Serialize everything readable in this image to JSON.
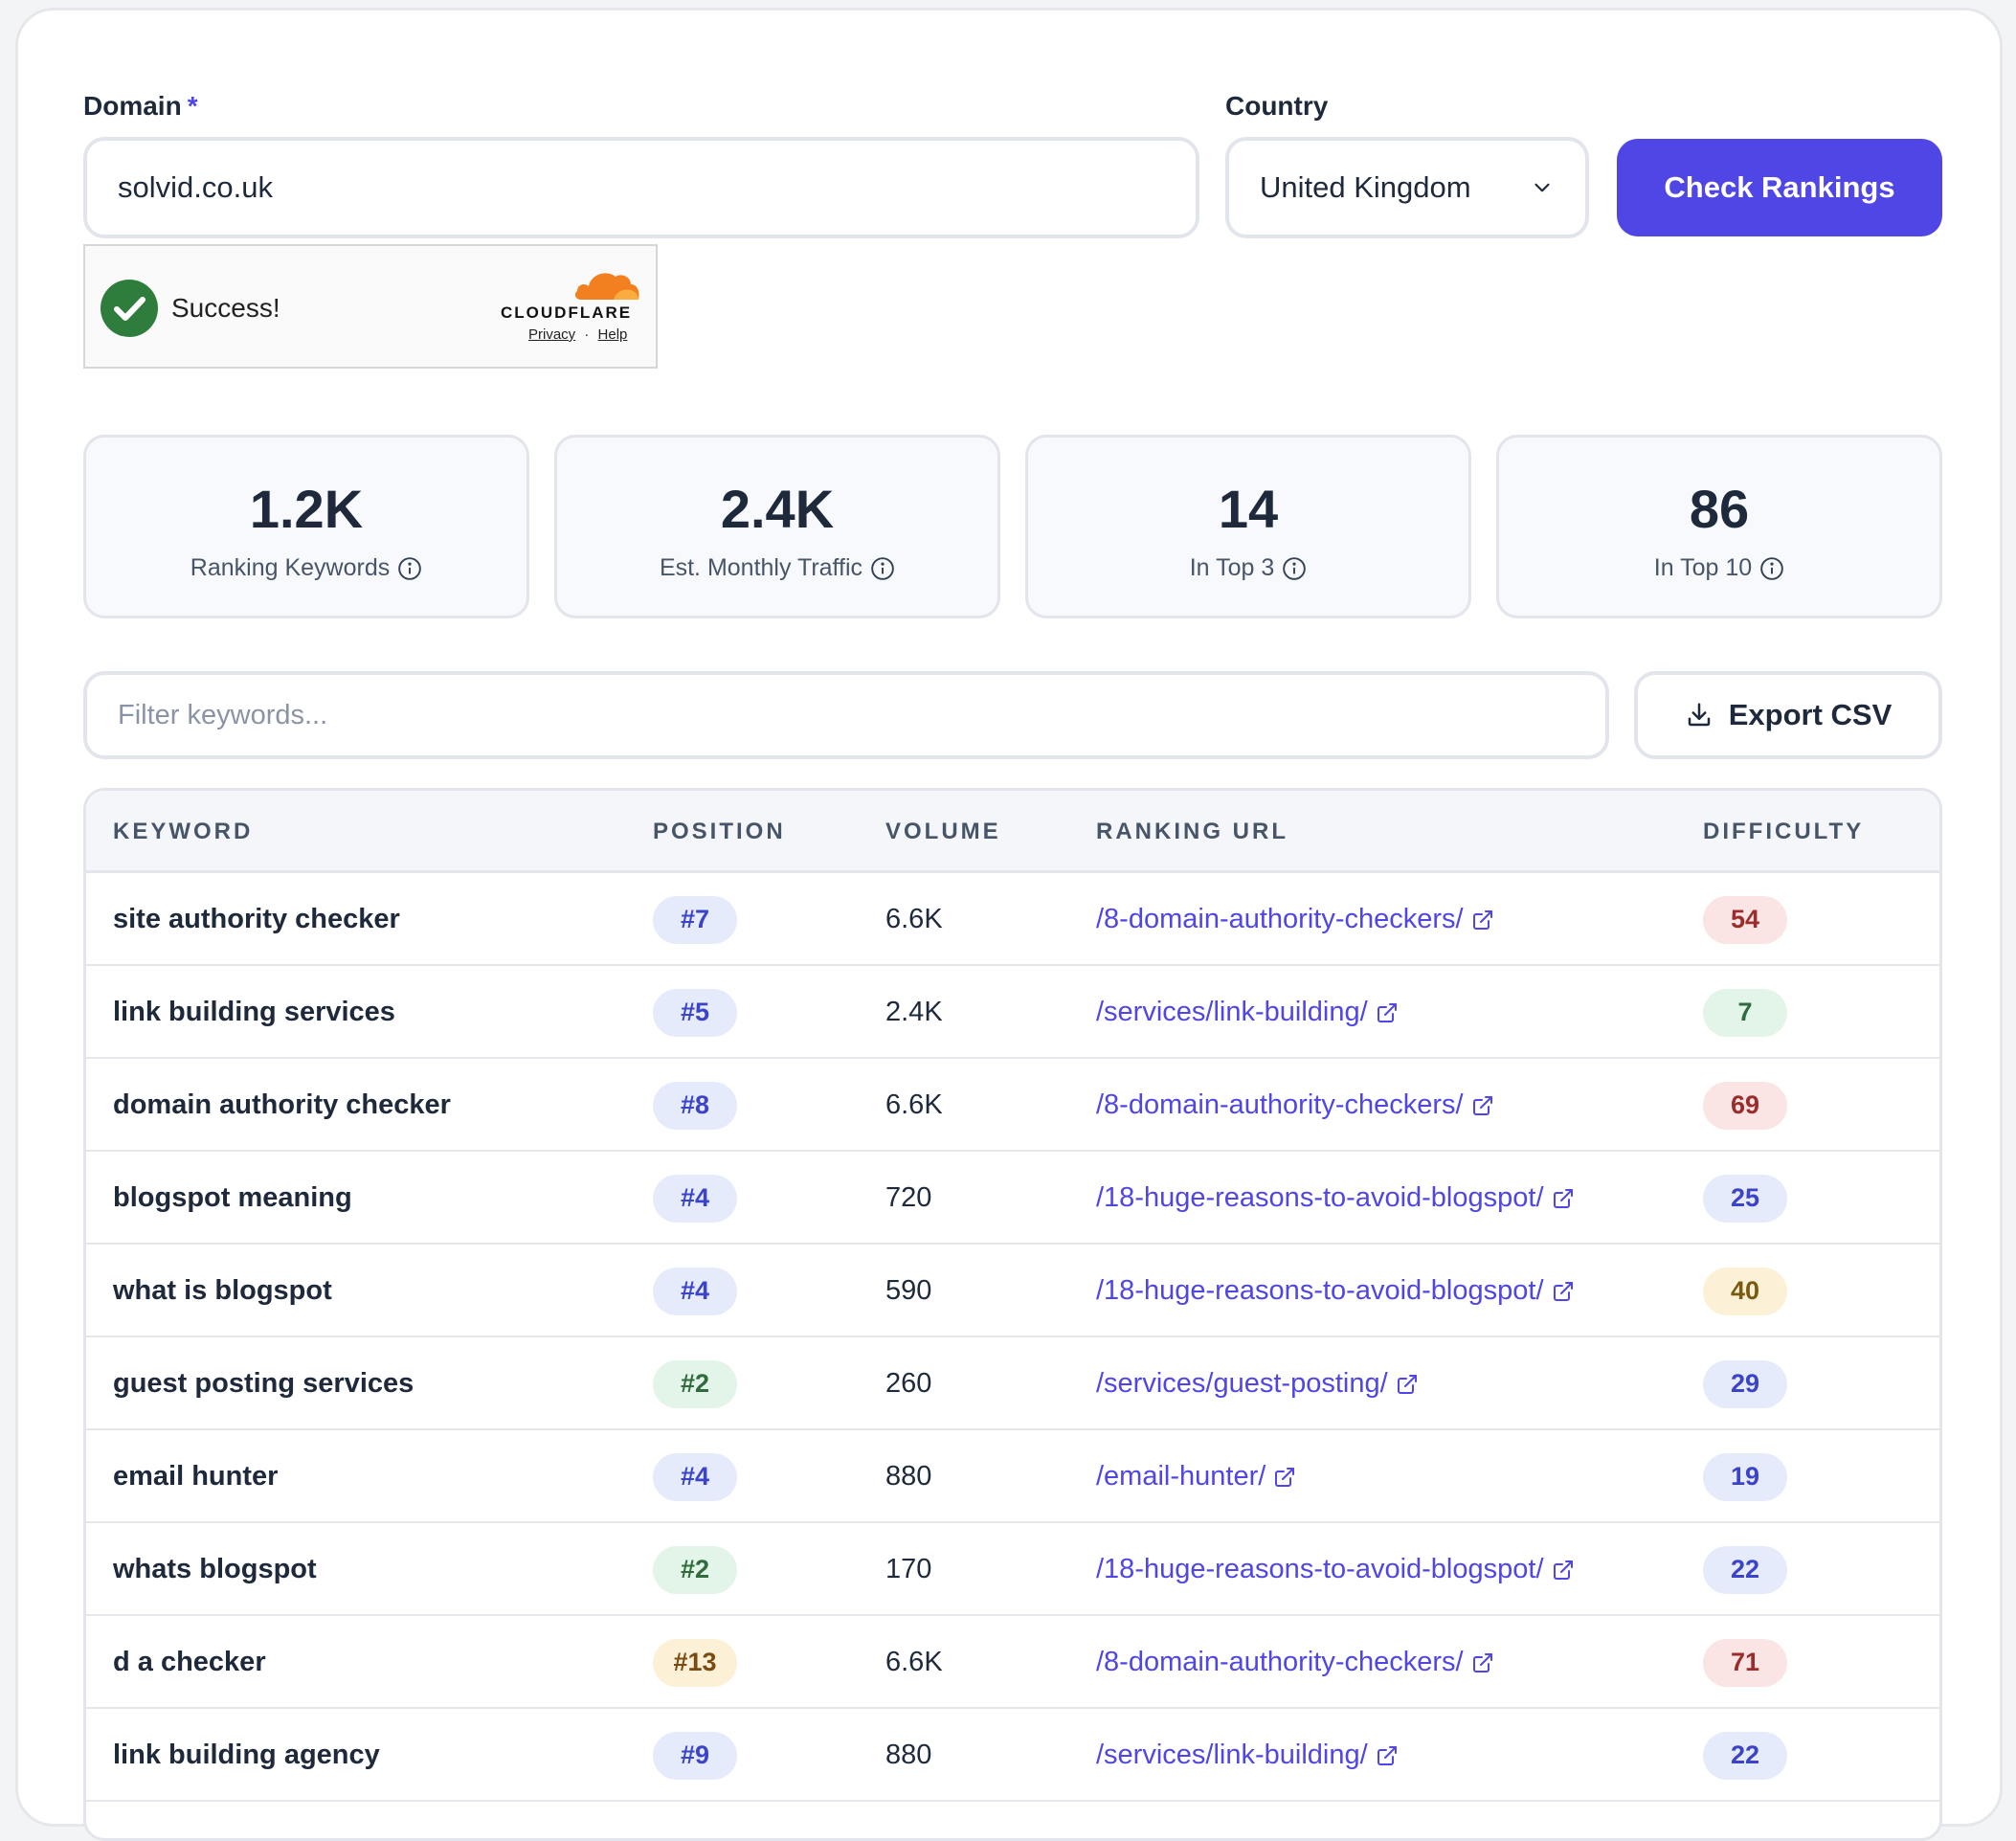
{
  "form": {
    "domain_label": "Domain",
    "domain_required_mark": "*",
    "domain_value": "solvid.co.uk",
    "country_label": "Country",
    "country_value": "United Kingdom",
    "submit_label": "Check Rankings"
  },
  "captcha": {
    "status": "Success!",
    "brand": "CLOUDFLARE",
    "privacy": "Privacy",
    "separator": "·",
    "help": "Help"
  },
  "stats": [
    {
      "value": "1.2K",
      "label": "Ranking Keywords"
    },
    {
      "value": "2.4K",
      "label": "Est. Monthly Traffic"
    },
    {
      "value": "14",
      "label": "In Top 3"
    },
    {
      "value": "86",
      "label": "In Top 10"
    }
  ],
  "filter": {
    "placeholder": "Filter keywords...",
    "export_label": "Export CSV"
  },
  "table": {
    "headers": {
      "keyword": "KEYWORD",
      "position": "POSITION",
      "volume": "VOLUME",
      "url": "RANKING URL",
      "difficulty": "DIFFICULTY"
    },
    "rows": [
      {
        "keyword": "site authority checker",
        "position": "#7",
        "volume": "6.6K",
        "url": "/8-domain-authority-checkers/",
        "difficulty": "54"
      },
      {
        "keyword": "link building services",
        "position": "#5",
        "volume": "2.4K",
        "url": "/services/link-building/",
        "difficulty": "7"
      },
      {
        "keyword": "domain authority checker",
        "position": "#8",
        "volume": "6.6K",
        "url": "/8-domain-authority-checkers/",
        "difficulty": "69"
      },
      {
        "keyword": "blogspot meaning",
        "position": "#4",
        "volume": "720",
        "url": "/18-huge-reasons-to-avoid-blogspot/",
        "difficulty": "25"
      },
      {
        "keyword": "what is blogspot",
        "position": "#4",
        "volume": "590",
        "url": "/18-huge-reasons-to-avoid-blogspot/",
        "difficulty": "40"
      },
      {
        "keyword": "guest posting services",
        "position": "#2",
        "volume": "260",
        "url": "/services/guest-posting/",
        "difficulty": "29"
      },
      {
        "keyword": "email hunter",
        "position": "#4",
        "volume": "880",
        "url": "/email-hunter/",
        "difficulty": "19"
      },
      {
        "keyword": "whats blogspot",
        "position": "#2",
        "volume": "170",
        "url": "/18-huge-reasons-to-avoid-blogspot/",
        "difficulty": "22"
      },
      {
        "keyword": "d a checker",
        "position": "#13",
        "volume": "6.6K",
        "url": "/8-domain-authority-checkers/",
        "difficulty": "71"
      },
      {
        "keyword": "link building agency",
        "position": "#9",
        "volume": "880",
        "url": "/services/link-building/",
        "difficulty": "22"
      }
    ]
  },
  "colors": {
    "accent": "#4f46e5",
    "success": "#2f7d3c",
    "cloudflare": "#f38020"
  }
}
